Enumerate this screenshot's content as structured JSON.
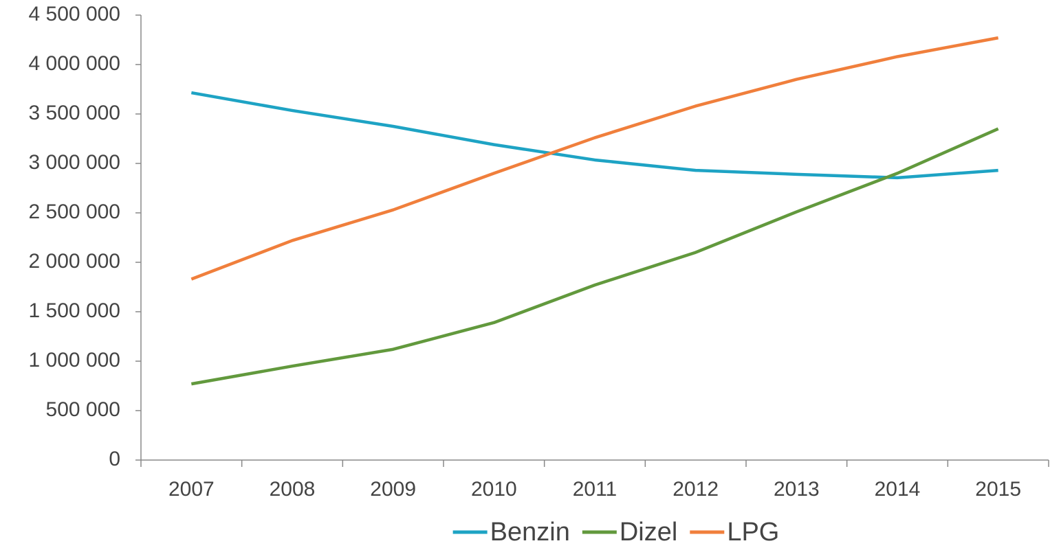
{
  "chart_data": {
    "type": "line",
    "categories": [
      "2007",
      "2008",
      "2009",
      "2010",
      "2011",
      "2012",
      "2013",
      "2014",
      "2015"
    ],
    "series": [
      {
        "name": "Benzin",
        "color": "#1ea3c4",
        "values": [
          3715000,
          3535000,
          3375000,
          3190000,
          3035000,
          2930000,
          2890000,
          2855000,
          2930000
        ]
      },
      {
        "name": "Dizel",
        "color": "#62993d",
        "values": [
          770000,
          950000,
          1120000,
          1390000,
          1770000,
          2100000,
          2510000,
          2900000,
          3350000
        ]
      },
      {
        "name": "LPG",
        "color": "#f07f3c",
        "values": [
          1830000,
          2220000,
          2530000,
          2900000,
          3260000,
          3580000,
          3850000,
          4080000,
          4270000
        ]
      }
    ],
    "ylim": [
      0,
      4500000
    ],
    "yticks": [
      0,
      {
        "value": 500000,
        "label": "500 000"
      },
      {
        "value": 1000000,
        "label": "1 000 000"
      },
      {
        "value": 1500000,
        "label": "1 500 000"
      },
      {
        "value": 2000000,
        "label": "2 000 000"
      },
      {
        "value": 2500000,
        "label": "2 500 000"
      },
      {
        "value": 3000000,
        "label": "3 000 000"
      },
      {
        "value": 3500000,
        "label": "3 500 000"
      },
      {
        "value": 4000000,
        "label": "4 000 000"
      },
      {
        "value": 4500000,
        "label": "4 500 000"
      }
    ],
    "grid": false,
    "legend": "bottom"
  }
}
